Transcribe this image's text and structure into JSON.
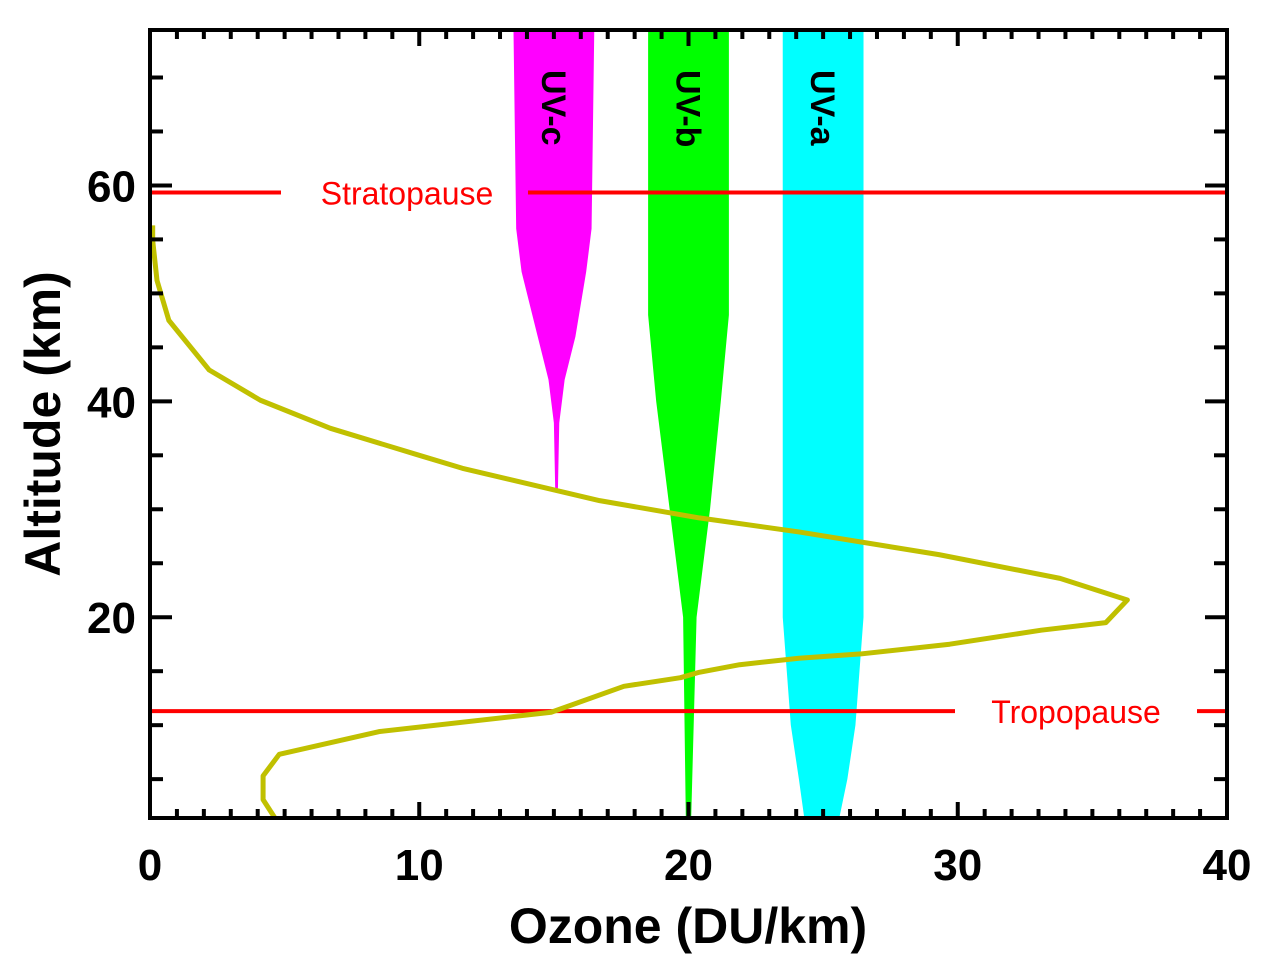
{
  "chart_data": {
    "type": "line",
    "title": "",
    "xlabel": "Ozone (DU/km)",
    "ylabel": "Altitude (km)",
    "xlim": [
      0,
      40
    ],
    "ylim": [
      1.4,
      74.4
    ],
    "x_ticks": [
      0,
      10,
      20,
      30,
      40
    ],
    "y_ticks": [
      20,
      40,
      60
    ],
    "grid": false,
    "series": [
      {
        "color": "#c0c000",
        "points": [
          [
            4.64,
            1.4
          ],
          [
            4.2,
            3.1
          ],
          [
            4.2,
            5.3
          ],
          [
            4.8,
            7.3
          ],
          [
            8.5,
            9.4
          ],
          [
            14.9,
            11.2
          ],
          [
            17.6,
            13.6
          ],
          [
            19.7,
            14.4
          ],
          [
            20.4,
            14.9
          ],
          [
            21.9,
            15.6
          ],
          [
            24.1,
            16.2
          ],
          [
            26.4,
            16.6
          ],
          [
            29.7,
            17.5
          ],
          [
            33.1,
            18.8
          ],
          [
            35.5,
            19.5
          ],
          [
            36.3,
            21.6
          ],
          [
            33.8,
            23.6
          ],
          [
            29.3,
            25.8
          ],
          [
            24.1,
            27.9
          ],
          [
            20.4,
            29.2
          ],
          [
            16.7,
            30.8
          ],
          [
            11.6,
            33.8
          ],
          [
            10.0,
            35.0
          ],
          [
            6.7,
            37.5
          ],
          [
            4.1,
            40.1
          ],
          [
            2.2,
            42.9
          ],
          [
            0.7,
            47.5
          ],
          [
            0.26,
            51.2
          ],
          [
            0.1,
            54.9
          ],
          [
            0.1,
            56.3
          ]
        ]
      }
    ],
    "bands": [
      {
        "label": "UV-c",
        "color": "#ff00ff",
        "profile": [
          [
            74.4,
            13.5,
            16.5
          ],
          [
            56,
            13.6,
            16.4
          ],
          [
            52,
            13.8,
            16.2
          ],
          [
            46,
            14.4,
            15.8
          ],
          [
            42,
            14.8,
            15.4
          ],
          [
            38,
            15.0,
            15.2
          ],
          [
            31.8,
            15.05,
            15.15
          ]
        ]
      },
      {
        "label": "UV-b",
        "color": "#00ff00",
        "profile": [
          [
            74.4,
            18.5,
            21.5
          ],
          [
            48,
            18.5,
            21.5
          ],
          [
            40,
            18.8,
            21.2
          ],
          [
            30,
            19.3,
            20.8
          ],
          [
            20,
            19.8,
            20.3
          ],
          [
            1.4,
            19.9,
            20.1
          ]
        ]
      },
      {
        "label": "UV-a",
        "color": "#00ffff",
        "profile": [
          [
            74.4,
            23.5,
            26.5
          ],
          [
            20,
            23.5,
            26.5
          ],
          [
            10,
            23.8,
            26.2
          ],
          [
            5,
            24.1,
            25.9
          ],
          [
            1.4,
            24.3,
            25.6
          ]
        ]
      }
    ],
    "reference_lines": [
      {
        "label": "Stratopause",
        "altitude": 59.35,
        "color": "#ff0000"
      },
      {
        "label": "Tropopause",
        "altitude": 11.3,
        "color": "#ff0000"
      }
    ]
  }
}
